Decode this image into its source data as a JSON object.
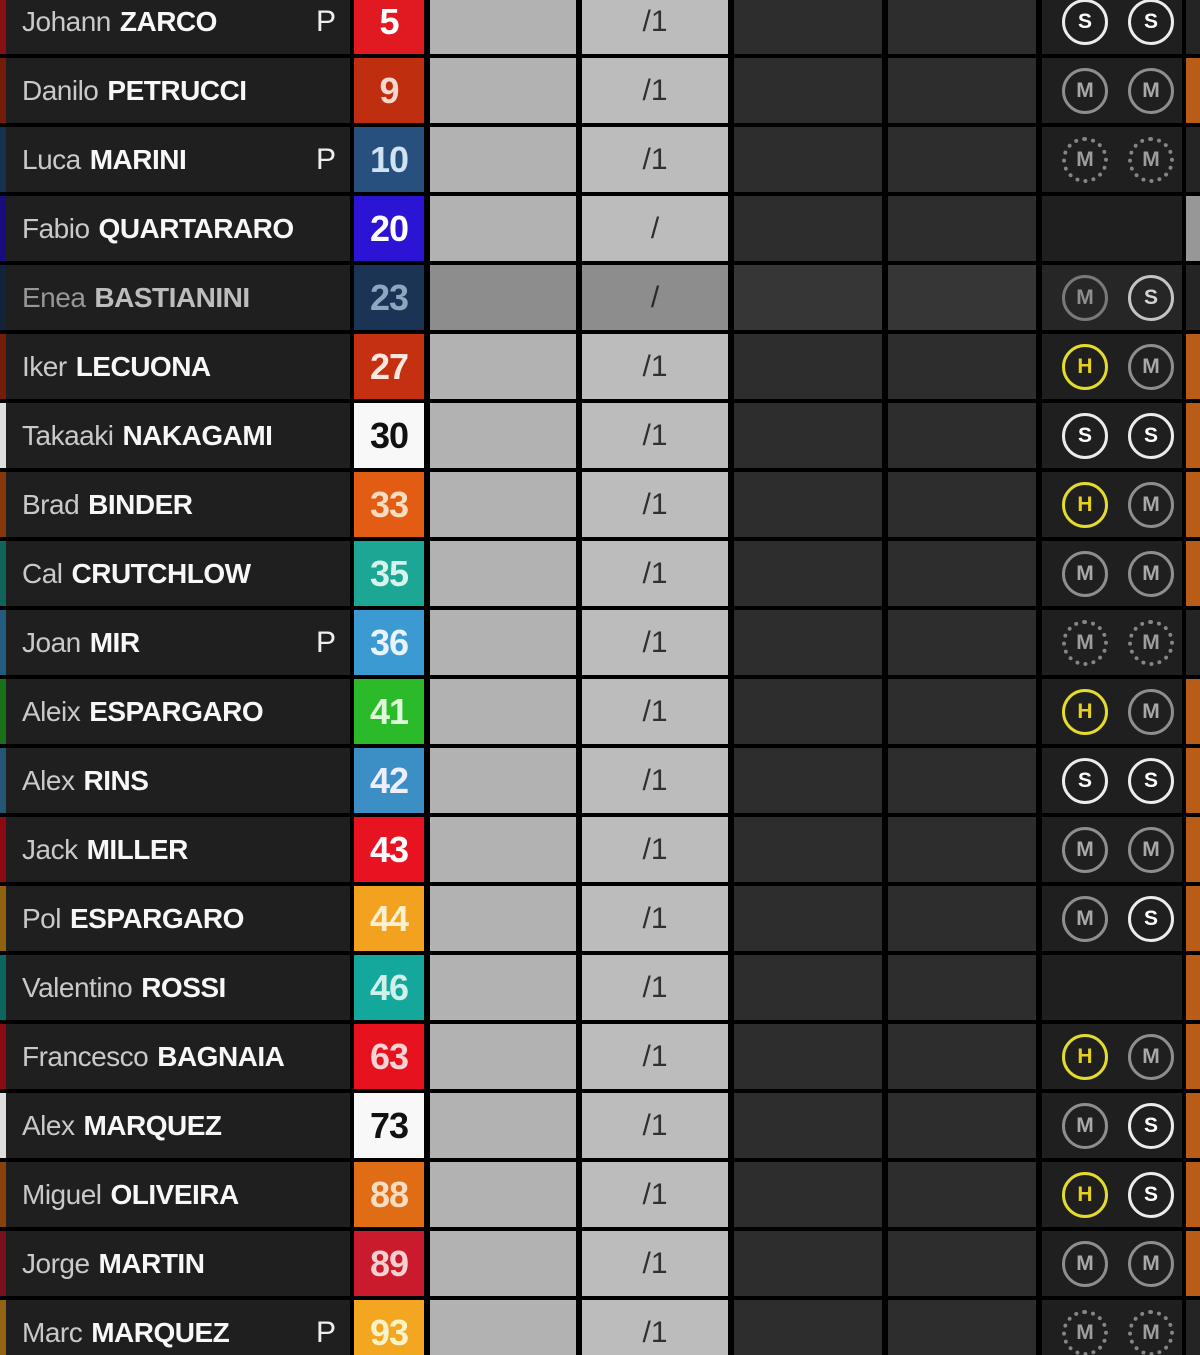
{
  "table": {
    "description": "MotoGP live timing rider list",
    "colors": {
      "row_bg": "#1f1f1f",
      "lap_cell_bg": "#bcbcbc",
      "time_cell_bg": "#b2b2b2",
      "sector_cell_bg": "#2d2d2d",
      "edge_orange": "#b95c17",
      "edge_gray": "#979797",
      "tire_soft": "#ececec",
      "tire_medium": "#8e8e8e",
      "tire_hard": "#e3dc2e"
    },
    "rows": [
      {
        "first": "Johann",
        "last": "ZARCO",
        "pit": "P",
        "num": "5",
        "num_bg": "#e11a22",
        "num_fg": "#ffffff",
        "strip": "#871014",
        "lap": "/1",
        "tires": [
          {
            "l": "S",
            "used": false
          },
          {
            "l": "S",
            "used": false
          }
        ],
        "edge": "none",
        "dim": false
      },
      {
        "first": "Danilo",
        "last": "PETRUCCI",
        "pit": "",
        "num": "9",
        "num_bg": "#c02e10",
        "num_fg": "#f6d9ce",
        "strip": "#731c0a",
        "lap": "/1",
        "tires": [
          {
            "l": "M",
            "used": false
          },
          {
            "l": "M",
            "used": false
          }
        ],
        "edge": "orange",
        "dim": false
      },
      {
        "first": "Luca",
        "last": "MARINI",
        "pit": "P",
        "num": "10",
        "num_bg": "#27507e",
        "num_fg": "#cfe3f2",
        "strip": "#17304c",
        "lap": "/1",
        "tires": [
          {
            "l": "M",
            "used": true
          },
          {
            "l": "M",
            "used": true
          }
        ],
        "edge": "none",
        "dim": false
      },
      {
        "first": "Fabio",
        "last": "QUARTARARO",
        "pit": "",
        "num": "20",
        "num_bg": "#2b14d4",
        "num_fg": "#ffffff",
        "strip": "#1a0c7f",
        "lap": "/",
        "tires": [],
        "edge": "gray",
        "dim": false
      },
      {
        "first": "Enea",
        "last": "BASTIANINI",
        "pit": "",
        "num": "23",
        "num_bg": "#1f3a5f",
        "num_fg": "#9fb9d6",
        "strip": "#132339",
        "lap": "/",
        "tires": [
          {
            "l": "M",
            "used": false
          },
          {
            "l": "S",
            "used": false
          }
        ],
        "edge": "none",
        "dim": true
      },
      {
        "first": "Iker",
        "last": "LECUONA",
        "pit": "",
        "num": "27",
        "num_bg": "#c53010",
        "num_fg": "#fce8e0",
        "strip": "#761d0a",
        "lap": "/1",
        "tires": [
          {
            "l": "H",
            "used": false
          },
          {
            "l": "M",
            "used": false
          }
        ],
        "edge": "orange",
        "dim": false
      },
      {
        "first": "Takaaki",
        "last": "NAKAGAMI",
        "pit": "",
        "num": "30",
        "num_bg": "#f8f8f8",
        "num_fg": "#111111",
        "strip": "#dedede",
        "lap": "/1",
        "tires": [
          {
            "l": "S",
            "used": false
          },
          {
            "l": "S",
            "used": false
          }
        ],
        "edge": "orange",
        "dim": false
      },
      {
        "first": "Brad",
        "last": "BINDER",
        "pit": "",
        "num": "33",
        "num_bg": "#e25c14",
        "num_fg": "#f8dcc0",
        "strip": "#87370c",
        "lap": "/1",
        "tires": [
          {
            "l": "H",
            "used": false
          },
          {
            "l": "M",
            "used": false
          }
        ],
        "edge": "orange",
        "dim": false
      },
      {
        "first": "Cal",
        "last": "CRUTCHLOW",
        "pit": "",
        "num": "35",
        "num_bg": "#1ba794",
        "num_fg": "#d8f2ec",
        "strip": "#106459",
        "lap": "/1",
        "tires": [
          {
            "l": "M",
            "used": false
          },
          {
            "l": "M",
            "used": false
          }
        ],
        "edge": "orange",
        "dim": false
      },
      {
        "first": "Joan",
        "last": "MIR",
        "pit": "P",
        "num": "36",
        "num_bg": "#3b9ad2",
        "num_fg": "#e8f4fb",
        "strip": "#235c7e",
        "lap": "/1",
        "tires": [
          {
            "l": "M",
            "used": true
          },
          {
            "l": "M",
            "used": true
          }
        ],
        "edge": "none",
        "dim": false
      },
      {
        "first": "Aleix",
        "last": "ESPARGARO",
        "pit": "",
        "num": "41",
        "num_bg": "#2aba2a",
        "num_fg": "#e0f8da",
        "strip": "#197019",
        "lap": "/1",
        "tires": [
          {
            "l": "H",
            "used": false
          },
          {
            "l": "M",
            "used": false
          }
        ],
        "edge": "orange",
        "dim": false
      },
      {
        "first": "Alex",
        "last": "RINS",
        "pit": "",
        "num": "42",
        "num_bg": "#3c8fc4",
        "num_fg": "#eeeeff",
        "strip": "#245676",
        "lap": "/1",
        "tires": [
          {
            "l": "S",
            "used": false
          },
          {
            "l": "S",
            "used": false
          }
        ],
        "edge": "orange",
        "dim": false
      },
      {
        "first": "Jack",
        "last": "MILLER",
        "pit": "",
        "num": "43",
        "num_bg": "#e81220",
        "num_fg": "#ffffff",
        "strip": "#8b0a13",
        "lap": "/1",
        "tires": [
          {
            "l": "M",
            "used": false
          },
          {
            "l": "M",
            "used": false
          }
        ],
        "edge": "orange",
        "dim": false
      },
      {
        "first": "Pol",
        "last": "ESPARGARO",
        "pit": "",
        "num": "44",
        "num_bg": "#f2a21e",
        "num_fg": "#fcf0d0",
        "strip": "#916112",
        "lap": "/1",
        "tires": [
          {
            "l": "M",
            "used": false
          },
          {
            "l": "S",
            "used": false
          }
        ],
        "edge": "orange",
        "dim": false
      },
      {
        "first": "Valentino",
        "last": "ROSSI",
        "pit": "",
        "num": "46",
        "num_bg": "#14a89c",
        "num_fg": "#d2f0ea",
        "strip": "#0c655e",
        "lap": "/1",
        "tires": [],
        "edge": "orange",
        "dim": false
      },
      {
        "first": "Francesco",
        "last": "BAGNAIA",
        "pit": "",
        "num": "63",
        "num_bg": "#e6131f",
        "num_fg": "#fad4d4",
        "strip": "#8a0b13",
        "lap": "/1",
        "tires": [
          {
            "l": "H",
            "used": false
          },
          {
            "l": "M",
            "used": false
          }
        ],
        "edge": "orange",
        "dim": false
      },
      {
        "first": "Alex",
        "last": "MARQUEZ",
        "pit": "",
        "num": "73",
        "num_bg": "#f8f8f8",
        "num_fg": "#111111",
        "strip": "#dedede",
        "lap": "/1",
        "tires": [
          {
            "l": "M",
            "used": false
          },
          {
            "l": "S",
            "used": false
          }
        ],
        "edge": "orange",
        "dim": false
      },
      {
        "first": "Miguel",
        "last": "OLIVEIRA",
        "pit": "",
        "num": "88",
        "num_bg": "#e06d16",
        "num_fg": "#f6ddc2",
        "strip": "#86410d",
        "lap": "/1",
        "tires": [
          {
            "l": "H",
            "used": false
          },
          {
            "l": "S",
            "used": false
          }
        ],
        "edge": "orange",
        "dim": false
      },
      {
        "first": "Jorge",
        "last": "MARTIN",
        "pit": "",
        "num": "89",
        "num_bg": "#ca1b2d",
        "num_fg": "#f6cfcf",
        "strip": "#79101b",
        "lap": "/1",
        "tires": [
          {
            "l": "M",
            "used": false
          },
          {
            "l": "M",
            "used": false
          }
        ],
        "edge": "orange",
        "dim": false
      },
      {
        "first": "Marc",
        "last": "MARQUEZ",
        "pit": "P",
        "num": "93",
        "num_bg": "#f3a61f",
        "num_fg": "#fbf3c8",
        "strip": "#926413",
        "lap": "/1",
        "tires": [
          {
            "l": "M",
            "used": true
          },
          {
            "l": "M",
            "used": true
          }
        ],
        "edge": "none",
        "dim": false
      }
    ]
  }
}
